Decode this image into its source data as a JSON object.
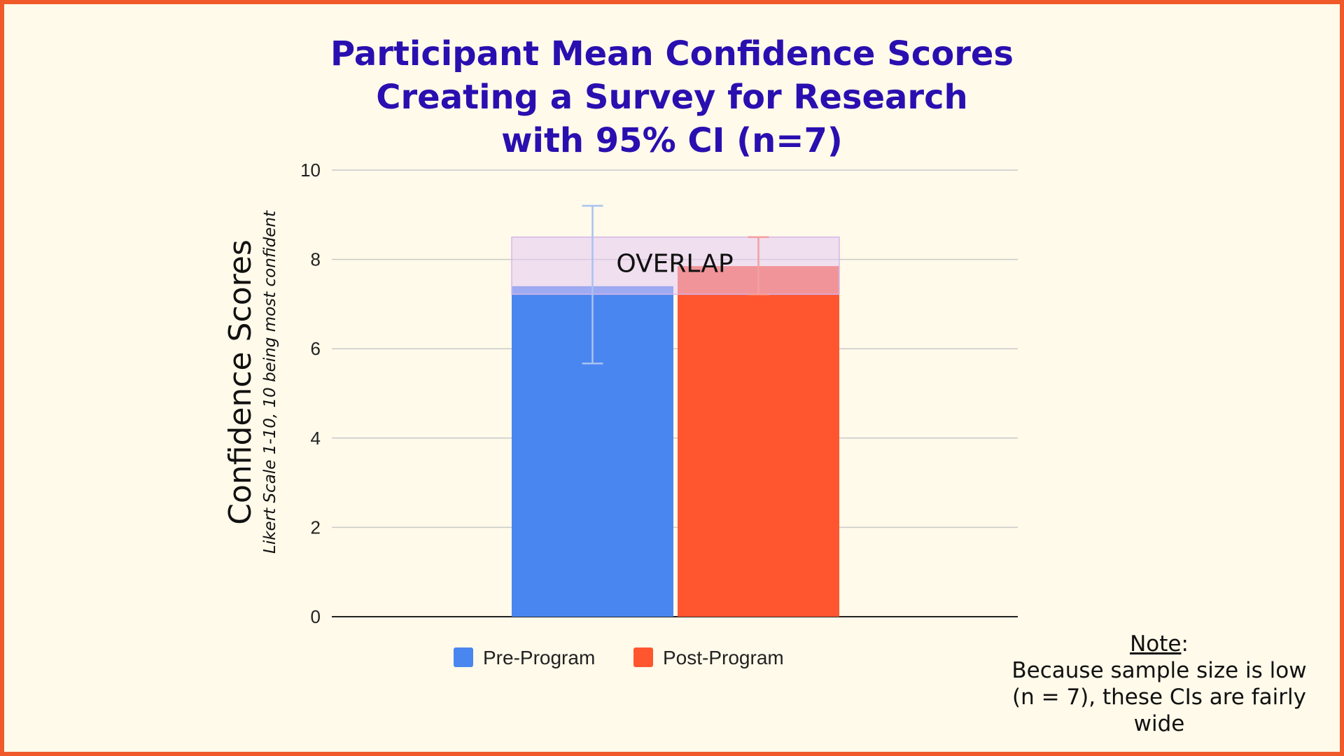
{
  "title_lines": [
    "Participant Mean Confidence Scores",
    "Creating a Survey for Research",
    "with 95% CI (n=7)"
  ],
  "note": {
    "label": "Note",
    "colon": ":",
    "lines": [
      "Because sample size is low",
      "(n = 7), these CIs are fairly",
      "wide"
    ]
  },
  "colors": {
    "background": "#fffaea",
    "border": "#f05a2a",
    "title": "#2a0fb0",
    "pre": "#4a86ef",
    "post": "#ff5630",
    "overlap": "#e4c8f2"
  },
  "chart_data": {
    "type": "bar",
    "categories": [
      ""
    ],
    "series": [
      {
        "name": "Pre-Program",
        "values": [
          7.4
        ],
        "ci_low": [
          5.67
        ],
        "ci_high": [
          9.2
        ],
        "color": "#4a86ef"
      },
      {
        "name": "Post-Program",
        "values": [
          7.85
        ],
        "ci_low": [
          7.22
        ],
        "ci_high": [
          8.5
        ],
        "color": "#ff5630"
      }
    ],
    "ylabel": "Confidence Scores",
    "ylabel_sub": "Likert Scale 1-10, 10 being most confident",
    "ylim": [
      0,
      10
    ],
    "yticks": [
      0,
      2,
      4,
      6,
      8,
      10
    ],
    "grid": true,
    "legend": "bottom",
    "overlap_region": {
      "label": "OVERLAP",
      "y_low": 7.22,
      "y_high": 8.5
    }
  }
}
